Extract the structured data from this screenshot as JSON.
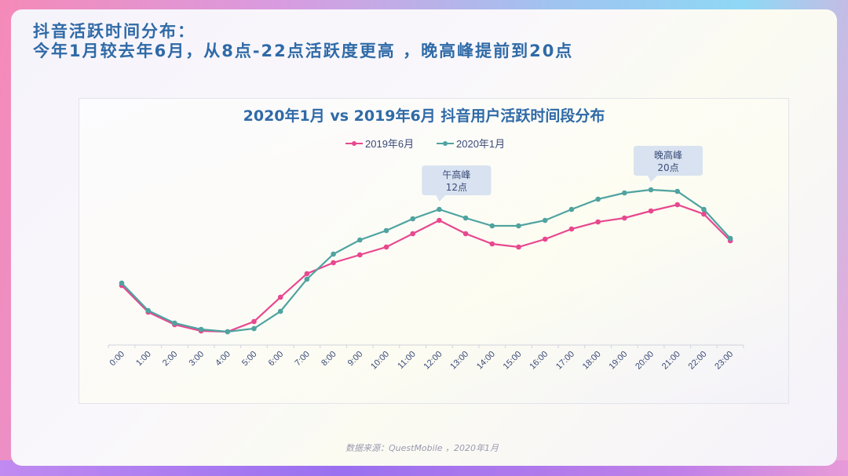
{
  "headline": {
    "line1": "抖音活跃时间分布：",
    "line2": "今年1月较去年6月，从8点-22点活跃度更高 ，晚高峰提前到20点"
  },
  "source": "数据来源：QuestMobile ，2020年1月",
  "colors": {
    "series_2019": "#e8488f",
    "series_2020": "#4fa3a0",
    "title": "#2f6aa7",
    "callout_bg": "#d4dff0"
  },
  "chart_data": {
    "type": "line",
    "title": "2020年1月 vs 2019年6月 抖音用户活跃时间段分布",
    "xlabel": "",
    "ylabel": "",
    "ylim": [
      0,
      200
    ],
    "grid": false,
    "legend": "top-center",
    "categories": [
      "0:00",
      "1:00",
      "2:00",
      "3:00",
      "4:00",
      "5:00",
      "6:00",
      "7:00",
      "8:00",
      "9:00",
      "10:00",
      "11:00",
      "12:00",
      "13:00",
      "14:00",
      "15:00",
      "16:00",
      "17:00",
      "18:00",
      "19:00",
      "20:00",
      "21:00",
      "22:00",
      "23:00"
    ],
    "series": [
      {
        "name": "2019年6月",
        "values": [
          76,
          42,
          26,
          18,
          17,
          30,
          61,
          91,
          105,
          115,
          125,
          142,
          159,
          142,
          129,
          125,
          135,
          148,
          157,
          162,
          171,
          179,
          167,
          133
        ]
      },
      {
        "name": "2020年1月",
        "values": [
          79,
          44,
          28,
          20,
          17,
          21,
          43,
          84,
          116,
          134,
          146,
          161,
          173,
          162,
          152,
          152,
          159,
          173,
          186,
          194,
          198,
          196,
          173,
          136
        ]
      }
    ],
    "annotations": [
      {
        "line1": "午高峰",
        "line2": "12点",
        "category_index": 12,
        "series_index": 1
      },
      {
        "line1": "晚高峰",
        "line2": "20点",
        "category_index": 20,
        "series_index": 1
      }
    ]
  }
}
